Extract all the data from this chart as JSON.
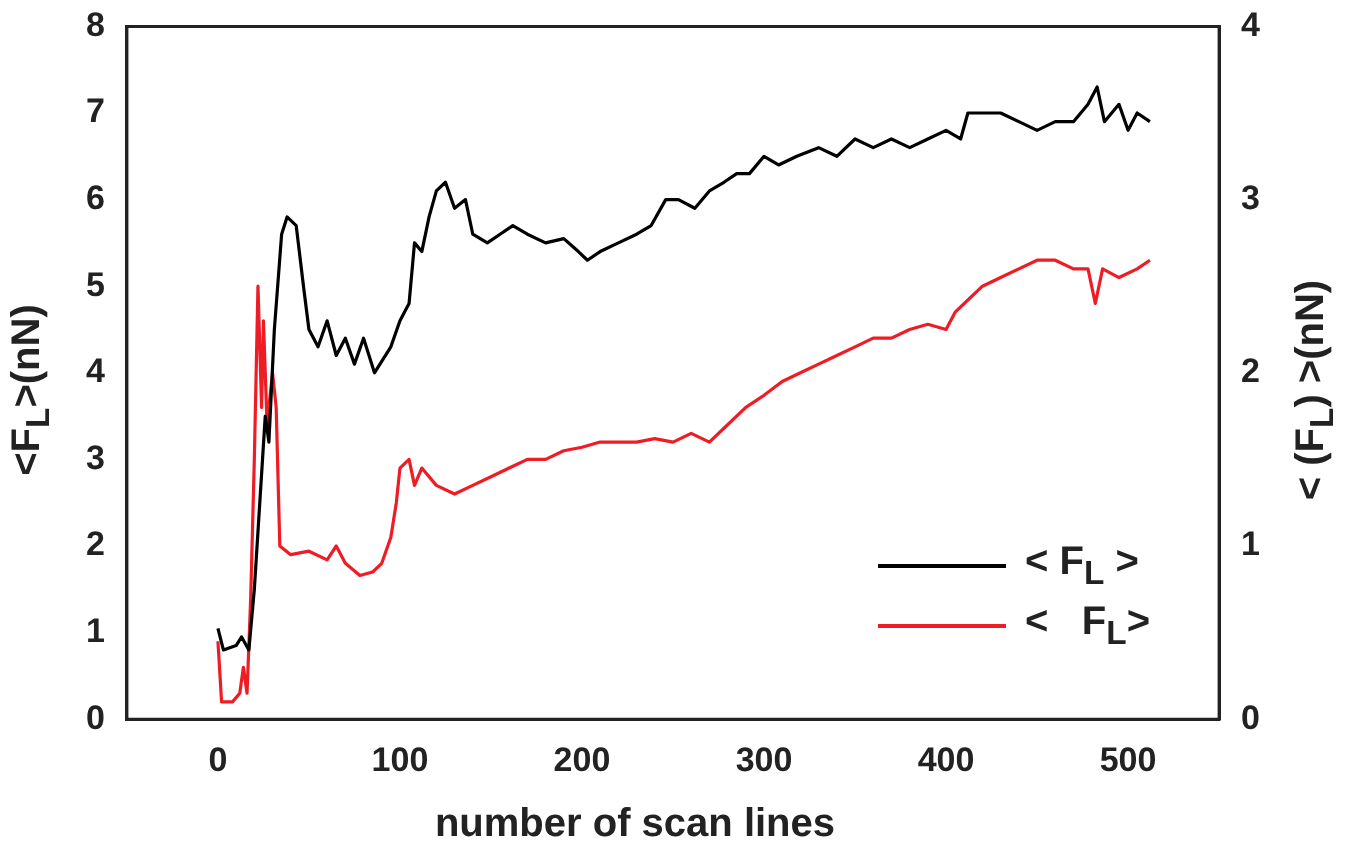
{
  "chart_data": {
    "type": "line",
    "xlabel": "number of scan lines",
    "ylabel": "<F$_{L}$>(nN)",
    "y2label": "< (F$_{L}$) >(nN)",
    "xlim": [
      -50,
      550
    ],
    "xticks": [
      0,
      100,
      200,
      300,
      400,
      500
    ],
    "ylim": [
      0,
      8
    ],
    "yticks": [
      0,
      1,
      2,
      3,
      4,
      5,
      6,
      7,
      8
    ],
    "y2lim": [
      0,
      4
    ],
    "y2ticks": [
      0,
      1,
      2,
      3,
      4
    ],
    "grid": false,
    "legend": "bottom right",
    "marker": "none",
    "line_style": "solid",
    "series": [
      {
        "name": "< F$_{L}$ >",
        "color": "#000000",
        "x": [
          0,
          3,
          10,
          13,
          17,
          20,
          23,
          26,
          28,
          31,
          35,
          38,
          43,
          47,
          50,
          55,
          60,
          65,
          70,
          75,
          80,
          86,
          95,
          100,
          105,
          108,
          112,
          116,
          120,
          125,
          130,
          136,
          140,
          148,
          155,
          162,
          170,
          180,
          190,
          198,
          203,
          210,
          220,
          230,
          238,
          246,
          253,
          262,
          270,
          278,
          285,
          292,
          300,
          308,
          318,
          330,
          340,
          350,
          360,
          370,
          380,
          390,
          400,
          408,
          412,
          420,
          430,
          440,
          450,
          460,
          470,
          478,
          483,
          487,
          495,
          500,
          505,
          512
        ],
        "values": [
          1.05,
          0.8,
          0.85,
          0.95,
          0.8,
          1.5,
          2.5,
          3.5,
          3.2,
          4.5,
          5.6,
          5.8,
          5.7,
          5.0,
          4.5,
          4.3,
          4.6,
          4.2,
          4.4,
          4.1,
          4.4,
          4.0,
          4.3,
          4.6,
          4.8,
          5.5,
          5.4,
          5.8,
          6.1,
          6.2,
          5.9,
          6.0,
          5.6,
          5.5,
          5.6,
          5.7,
          5.6,
          5.5,
          5.55,
          5.4,
          5.3,
          5.4,
          5.5,
          5.6,
          5.7,
          6.0,
          6.0,
          5.9,
          6.1,
          6.2,
          6.3,
          6.3,
          6.5,
          6.4,
          6.5,
          6.6,
          6.5,
          6.7,
          6.6,
          6.7,
          6.6,
          6.7,
          6.8,
          6.7,
          7.0,
          7.0,
          7.0,
          6.9,
          6.8,
          6.9,
          6.9,
          7.1,
          7.3,
          6.9,
          7.1,
          6.8,
          7.0,
          6.9
        ]
      },
      {
        "name": "<   F$_{L}$>",
        "color": "#ee1c25",
        "axis": "y2",
        "x": [
          0,
          2,
          8,
          12,
          14,
          16,
          18,
          20,
          22,
          24,
          25,
          27,
          30,
          32,
          34,
          40,
          50,
          60,
          65,
          70,
          78,
          85,
          90,
          95,
          98,
          100,
          105,
          108,
          112,
          120,
          130,
          140,
          150,
          160,
          170,
          180,
          190,
          200,
          210,
          220,
          230,
          240,
          250,
          260,
          270,
          280,
          290,
          300,
          310,
          320,
          330,
          340,
          350,
          360,
          370,
          380,
          390,
          400,
          405,
          410,
          420,
          430,
          440,
          450,
          460,
          470,
          478,
          482,
          486,
          495,
          505,
          512
        ],
        "values": [
          0.45,
          0.1,
          0.1,
          0.15,
          0.3,
          0.15,
          0.7,
          1.5,
          2.5,
          1.8,
          2.3,
          1.7,
          2.0,
          1.8,
          1.0,
          0.95,
          0.97,
          0.92,
          1.0,
          0.9,
          0.83,
          0.85,
          0.9,
          1.05,
          1.25,
          1.45,
          1.5,
          1.35,
          1.45,
          1.35,
          1.3,
          1.35,
          1.4,
          1.45,
          1.5,
          1.5,
          1.55,
          1.57,
          1.6,
          1.6,
          1.6,
          1.62,
          1.6,
          1.65,
          1.6,
          1.7,
          1.8,
          1.87,
          1.95,
          2.0,
          2.05,
          2.1,
          2.15,
          2.2,
          2.2,
          2.25,
          2.28,
          2.25,
          2.35,
          2.4,
          2.5,
          2.55,
          2.6,
          2.65,
          2.65,
          2.6,
          2.6,
          2.4,
          2.6,
          2.55,
          2.6,
          2.65
        ]
      }
    ]
  }
}
